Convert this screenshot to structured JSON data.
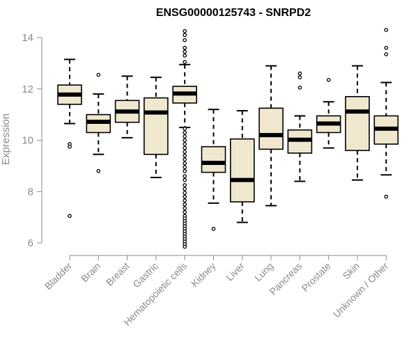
{
  "chart_data": {
    "type": "box",
    "title": "ENSG00000125743 - SNRPD2",
    "ylabel": "Expression",
    "xlabel": "",
    "ylim": [
      5.8,
      14.3
    ],
    "yticks": [
      6,
      8,
      10,
      12,
      14
    ],
    "grid": false,
    "colors": {
      "box_fill": "#efe8cf",
      "stroke": "#000000",
      "axis": "#8a8a8a"
    },
    "categories": [
      "Bladder",
      "Brain",
      "Breast",
      "Gastric",
      "Hematopoietic cells",
      "Kidney",
      "Liver",
      "Lung",
      "Pancreas",
      "Prostate",
      "Skin",
      "Unknown / Other"
    ],
    "boxes": [
      {
        "category": "Bladder",
        "whisker_low": 10.65,
        "q1": 11.4,
        "median": 11.78,
        "q3": 12.15,
        "whisker_high": 13.15,
        "outliers": [
          9.85,
          9.75,
          7.05
        ]
      },
      {
        "category": "Brain",
        "whisker_low": 9.45,
        "q1": 10.3,
        "median": 10.72,
        "q3": 11.0,
        "whisker_high": 11.8,
        "outliers": [
          12.55,
          8.8
        ]
      },
      {
        "category": "Breast",
        "whisker_low": 10.1,
        "q1": 10.7,
        "median": 11.12,
        "q3": 11.55,
        "whisker_high": 12.5,
        "outliers": []
      },
      {
        "category": "Gastric",
        "whisker_low": 8.55,
        "q1": 9.45,
        "median": 11.08,
        "q3": 11.65,
        "whisker_high": 12.45,
        "outliers": []
      },
      {
        "category": "Hematopoietic cells",
        "whisker_low": 10.5,
        "q1": 11.45,
        "median": 11.82,
        "q3": 12.1,
        "whisker_high": 12.95,
        "outliers": [
          14.25,
          14.1,
          13.9,
          13.6,
          13.45,
          13.3,
          13.05,
          10.45,
          10.3,
          10.15,
          10.0,
          9.85,
          9.7,
          9.55,
          9.4,
          9.25,
          9.1,
          8.95,
          8.8,
          8.6,
          8.45,
          8.25,
          8.1,
          7.95,
          7.8,
          7.65,
          7.5,
          7.35,
          7.2,
          7.05,
          6.95,
          6.85,
          6.75,
          6.65,
          6.55,
          6.45,
          6.35,
          6.25,
          6.15,
          6.05,
          5.95,
          5.85
        ]
      },
      {
        "category": "Kidney",
        "whisker_low": 7.55,
        "q1": 8.75,
        "median": 9.12,
        "q3": 9.75,
        "whisker_high": 11.2,
        "outliers": [
          6.55
        ]
      },
      {
        "category": "Liver",
        "whisker_low": 6.8,
        "q1": 7.6,
        "median": 8.45,
        "q3": 10.05,
        "whisker_high": 11.15,
        "outliers": []
      },
      {
        "category": "Lung",
        "whisker_low": 7.45,
        "q1": 9.65,
        "median": 10.2,
        "q3": 11.25,
        "whisker_high": 12.9,
        "outliers": []
      },
      {
        "category": "Pancreas",
        "whisker_low": 8.4,
        "q1": 9.5,
        "median": 10.02,
        "q3": 10.4,
        "whisker_high": 10.95,
        "outliers": [
          12.6,
          12.45,
          12.05
        ]
      },
      {
        "category": "Prostate",
        "whisker_low": 9.7,
        "q1": 10.3,
        "median": 10.65,
        "q3": 10.95,
        "whisker_high": 11.5,
        "outliers": [
          12.35
        ]
      },
      {
        "category": "Skin",
        "whisker_low": 8.45,
        "q1": 9.6,
        "median": 11.12,
        "q3": 11.7,
        "whisker_high": 12.9,
        "outliers": []
      },
      {
        "category": "Unknown / Other",
        "whisker_low": 8.65,
        "q1": 9.85,
        "median": 10.45,
        "q3": 10.95,
        "whisker_high": 12.25,
        "outliers": [
          14.3,
          13.6,
          13.35,
          7.8
        ]
      }
    ]
  }
}
